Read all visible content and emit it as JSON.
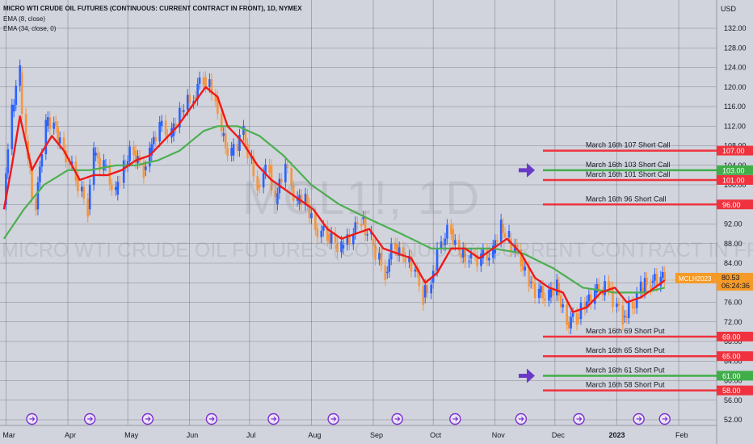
{
  "header": {
    "title": "MICRO WTI CRUDE OIL FUTURES (CONTINUOUS: CURRENT CONTRACT IN FRONT), 1D, NYMEX",
    "indicator_1": "EMA (8, close)",
    "indicator_2": "EMA (34, close, 0)",
    "currency": "USD"
  },
  "watermark": {
    "symbol": "MCL1!, 1D",
    "description": "MICRO WTI CRUDE OIL FUTURES (CONTINUOUS: CURRENT CONTRACT IN FRONT)"
  },
  "colors": {
    "background": "#d1d4dc",
    "grid": "#474b57",
    "candle_up": "#2962ff",
    "candle_down": "#f7953c",
    "ema_fast": "#f01818",
    "ema_slow": "#4caf50",
    "short_line": "#f0323e",
    "highlight_line": "#3fae49",
    "arrow": "#6a39c8",
    "event_icon": "#7b2fd0",
    "price_tag": "#f59a27"
  },
  "chart_data": {
    "type": "candlestick",
    "symbol": "MCLH2023",
    "last_price": "80.53",
    "countdown": "06:24:36",
    "ylim": [
      50,
      136
    ],
    "y_ticks": [
      "132.00",
      "128.00",
      "124.00",
      "120.00",
      "116.00",
      "112.00",
      "108.00",
      "104.00",
      "100.00",
      "96.00",
      "92.00",
      "88.00",
      "84.00",
      "80.00",
      "76.00",
      "72.00",
      "68.00",
      "64.00",
      "60.00",
      "56.00",
      "52.00"
    ],
    "x_labels": [
      {
        "label": "Mar",
        "date": "2022-03-01"
      },
      {
        "label": "Apr",
        "date": "2022-04-01"
      },
      {
        "label": "May",
        "date": "2022-05-01"
      },
      {
        "label": "Jun",
        "date": "2022-06-01"
      },
      {
        "label": "Jul",
        "date": "2022-07-01"
      },
      {
        "label": "Aug",
        "date": "2022-08-01"
      },
      {
        "label": "Sep",
        "date": "2022-09-01"
      },
      {
        "label": "Oct",
        "date": "2022-10-01"
      },
      {
        "label": "Nov",
        "date": "2022-11-01"
      },
      {
        "label": "Dec",
        "date": "2022-12-01"
      },
      {
        "label": "2023",
        "date": "2023-01-01"
      },
      {
        "label": "Feb",
        "date": "2023-02-01"
      }
    ],
    "close_series": [
      {
        "date": "2022-02-28",
        "close": 96
      },
      {
        "date": "2022-03-04",
        "close": 115
      },
      {
        "date": "2022-03-08",
        "close": 123
      },
      {
        "date": "2022-03-11",
        "close": 109
      },
      {
        "date": "2022-03-16",
        "close": 95
      },
      {
        "date": "2022-03-21",
        "close": 112
      },
      {
        "date": "2022-03-25",
        "close": 113
      },
      {
        "date": "2022-03-30",
        "close": 107
      },
      {
        "date": "2022-04-05",
        "close": 102
      },
      {
        "date": "2022-04-11",
        "close": 95
      },
      {
        "date": "2022-04-14",
        "close": 106
      },
      {
        "date": "2022-04-19",
        "close": 104
      },
      {
        "date": "2022-04-25",
        "close": 98
      },
      {
        "date": "2022-04-29",
        "close": 104
      },
      {
        "date": "2022-05-04",
        "close": 107
      },
      {
        "date": "2022-05-09",
        "close": 103
      },
      {
        "date": "2022-05-12",
        "close": 106
      },
      {
        "date": "2022-05-17",
        "close": 112
      },
      {
        "date": "2022-05-23",
        "close": 110
      },
      {
        "date": "2022-05-27",
        "close": 115
      },
      {
        "date": "2022-06-03",
        "close": 118
      },
      {
        "date": "2022-06-08",
        "close": 122
      },
      {
        "date": "2022-06-14",
        "close": 118
      },
      {
        "date": "2022-06-17",
        "close": 110
      },
      {
        "date": "2022-06-22",
        "close": 106
      },
      {
        "date": "2022-06-28",
        "close": 111
      },
      {
        "date": "2022-07-05",
        "close": 100
      },
      {
        "date": "2022-07-11",
        "close": 104
      },
      {
        "date": "2022-07-14",
        "close": 96
      },
      {
        "date": "2022-07-19",
        "close": 104
      },
      {
        "date": "2022-07-25",
        "close": 96
      },
      {
        "date": "2022-07-29",
        "close": 98
      },
      {
        "date": "2022-08-03",
        "close": 91
      },
      {
        "date": "2022-08-09",
        "close": 90
      },
      {
        "date": "2022-08-16",
        "close": 87
      },
      {
        "date": "2022-08-22",
        "close": 90
      },
      {
        "date": "2022-08-26",
        "close": 93
      },
      {
        "date": "2022-08-31",
        "close": 89
      },
      {
        "date": "2022-09-07",
        "close": 82
      },
      {
        "date": "2022-09-12",
        "close": 88
      },
      {
        "date": "2022-09-16",
        "close": 85
      },
      {
        "date": "2022-09-22",
        "close": 83
      },
      {
        "date": "2022-09-26",
        "close": 77
      },
      {
        "date": "2022-09-30",
        "close": 80
      },
      {
        "date": "2022-10-05",
        "close": 88
      },
      {
        "date": "2022-10-10",
        "close": 91
      },
      {
        "date": "2022-10-14",
        "close": 86
      },
      {
        "date": "2022-10-19",
        "close": 85
      },
      {
        "date": "2022-10-25",
        "close": 85
      },
      {
        "date": "2022-10-31",
        "close": 86
      },
      {
        "date": "2022-11-04",
        "close": 92
      },
      {
        "date": "2022-11-08",
        "close": 89
      },
      {
        "date": "2022-11-14",
        "close": 85
      },
      {
        "date": "2022-11-18",
        "close": 80
      },
      {
        "date": "2022-11-23",
        "close": 78
      },
      {
        "date": "2022-11-28",
        "close": 77
      },
      {
        "date": "2022-12-02",
        "close": 80
      },
      {
        "date": "2022-12-07",
        "close": 72
      },
      {
        "date": "2022-12-12",
        "close": 73
      },
      {
        "date": "2022-12-16",
        "close": 75
      },
      {
        "date": "2022-12-21",
        "close": 78
      },
      {
        "date": "2022-12-28",
        "close": 79
      },
      {
        "date": "2023-01-04",
        "close": 73
      },
      {
        "date": "2023-01-09",
        "close": 75
      },
      {
        "date": "2023-01-13",
        "close": 79
      },
      {
        "date": "2023-01-18",
        "close": 80
      },
      {
        "date": "2023-01-23",
        "close": 81
      },
      {
        "date": "2023-01-25",
        "close": 80.5
      }
    ],
    "ema_fast": [
      {
        "date": "2022-02-28",
        "v": 95
      },
      {
        "date": "2022-03-04",
        "v": 104
      },
      {
        "date": "2022-03-08",
        "v": 114
      },
      {
        "date": "2022-03-14",
        "v": 103
      },
      {
        "date": "2022-03-18",
        "v": 106
      },
      {
        "date": "2022-03-24",
        "v": 110
      },
      {
        "date": "2022-03-30",
        "v": 107
      },
      {
        "date": "2022-04-07",
        "v": 101
      },
      {
        "date": "2022-04-14",
        "v": 102
      },
      {
        "date": "2022-04-21",
        "v": 102
      },
      {
        "date": "2022-04-28",
        "v": 103
      },
      {
        "date": "2022-05-05",
        "v": 105
      },
      {
        "date": "2022-05-12",
        "v": 106
      },
      {
        "date": "2022-05-19",
        "v": 109
      },
      {
        "date": "2022-05-26",
        "v": 112
      },
      {
        "date": "2022-06-02",
        "v": 116
      },
      {
        "date": "2022-06-09",
        "v": 120
      },
      {
        "date": "2022-06-15",
        "v": 118
      },
      {
        "date": "2022-06-20",
        "v": 112
      },
      {
        "date": "2022-06-27",
        "v": 109
      },
      {
        "date": "2022-07-05",
        "v": 104
      },
      {
        "date": "2022-07-12",
        "v": 101
      },
      {
        "date": "2022-07-19",
        "v": 99
      },
      {
        "date": "2022-07-26",
        "v": 97
      },
      {
        "date": "2022-08-02",
        "v": 95
      },
      {
        "date": "2022-08-09",
        "v": 91
      },
      {
        "date": "2022-08-16",
        "v": 89
      },
      {
        "date": "2022-08-23",
        "v": 90
      },
      {
        "date": "2022-08-30",
        "v": 91
      },
      {
        "date": "2022-09-06",
        "v": 87
      },
      {
        "date": "2022-09-13",
        "v": 86
      },
      {
        "date": "2022-09-20",
        "v": 85
      },
      {
        "date": "2022-09-27",
        "v": 80
      },
      {
        "date": "2022-10-03",
        "v": 82
      },
      {
        "date": "2022-10-10",
        "v": 87
      },
      {
        "date": "2022-10-17",
        "v": 87
      },
      {
        "date": "2022-10-24",
        "v": 85
      },
      {
        "date": "2022-10-31",
        "v": 87
      },
      {
        "date": "2022-11-07",
        "v": 89
      },
      {
        "date": "2022-11-14",
        "v": 86
      },
      {
        "date": "2022-11-21",
        "v": 81
      },
      {
        "date": "2022-11-28",
        "v": 79
      },
      {
        "date": "2022-12-05",
        "v": 78
      },
      {
        "date": "2022-12-10",
        "v": 74
      },
      {
        "date": "2022-12-17",
        "v": 75
      },
      {
        "date": "2022-12-24",
        "v": 78
      },
      {
        "date": "2022-12-31",
        "v": 79
      },
      {
        "date": "2023-01-06",
        "v": 76
      },
      {
        "date": "2023-01-13",
        "v": 77
      },
      {
        "date": "2023-01-20",
        "v": 79
      },
      {
        "date": "2023-01-25",
        "v": 80.5
      }
    ],
    "ema_slow": [
      {
        "date": "2022-02-28",
        "v": 89
      },
      {
        "date": "2022-03-10",
        "v": 95
      },
      {
        "date": "2022-03-20",
        "v": 100
      },
      {
        "date": "2022-04-01",
        "v": 103
      },
      {
        "date": "2022-04-12",
        "v": 103
      },
      {
        "date": "2022-04-25",
        "v": 104
      },
      {
        "date": "2022-05-05",
        "v": 104
      },
      {
        "date": "2022-05-16",
        "v": 105
      },
      {
        "date": "2022-05-27",
        "v": 107
      },
      {
        "date": "2022-06-08",
        "v": 111
      },
      {
        "date": "2022-06-15",
        "v": 112
      },
      {
        "date": "2022-06-25",
        "v": 112
      },
      {
        "date": "2022-07-06",
        "v": 110
      },
      {
        "date": "2022-07-18",
        "v": 106
      },
      {
        "date": "2022-08-01",
        "v": 100
      },
      {
        "date": "2022-08-15",
        "v": 96
      },
      {
        "date": "2022-08-30",
        "v": 93
      },
      {
        "date": "2022-09-15",
        "v": 90
      },
      {
        "date": "2022-09-30",
        "v": 87
      },
      {
        "date": "2022-10-15",
        "v": 87
      },
      {
        "date": "2022-10-31",
        "v": 87
      },
      {
        "date": "2022-11-15",
        "v": 86
      },
      {
        "date": "2022-11-30",
        "v": 83
      },
      {
        "date": "2022-12-15",
        "v": 79
      },
      {
        "date": "2022-12-31",
        "v": 78
      },
      {
        "date": "2023-01-15",
        "v": 78
      },
      {
        "date": "2023-01-25",
        "v": 79
      }
    ],
    "option_levels": [
      {
        "label": "March 16th 107 Short Call",
        "price": 107,
        "tag": "107.00",
        "color": "#f0323e",
        "arrow": false
      },
      {
        "label": "March 16th 103 Short Call",
        "price": 103,
        "tag": "103.00",
        "color": "#3fae49",
        "arrow": true
      },
      {
        "label": "March 16th 101 Short Call",
        "price": 101,
        "tag": "101.00",
        "color": "#f0323e",
        "arrow": false
      },
      {
        "label": "March 16th 96 Short Call",
        "price": 96,
        "tag": "96.00",
        "color": "#f0323e",
        "arrow": false
      },
      {
        "label": "March 16th 69 Short Put",
        "price": 69,
        "tag": "69.00",
        "color": "#f0323e",
        "arrow": false
      },
      {
        "label": "March 16th 65 Short Put",
        "price": 65,
        "tag": "65.00",
        "color": "#f0323e",
        "arrow": false
      },
      {
        "label": "March 16th 61 Short Put",
        "price": 61,
        "tag": "61.00",
        "color": "#3fae49",
        "arrow": true
      },
      {
        "label": "March 16th 58 Short Put",
        "price": 58,
        "tag": "58.00",
        "color": "#f0323e",
        "arrow": false
      }
    ],
    "event_markers": [
      "2022-03-14",
      "2022-04-12",
      "2022-05-11",
      "2022-06-12",
      "2022-07-13",
      "2022-08-12",
      "2022-09-13",
      "2022-10-12",
      "2022-11-14",
      "2022-12-13",
      "2023-01-12",
      "2023-01-25"
    ]
  }
}
